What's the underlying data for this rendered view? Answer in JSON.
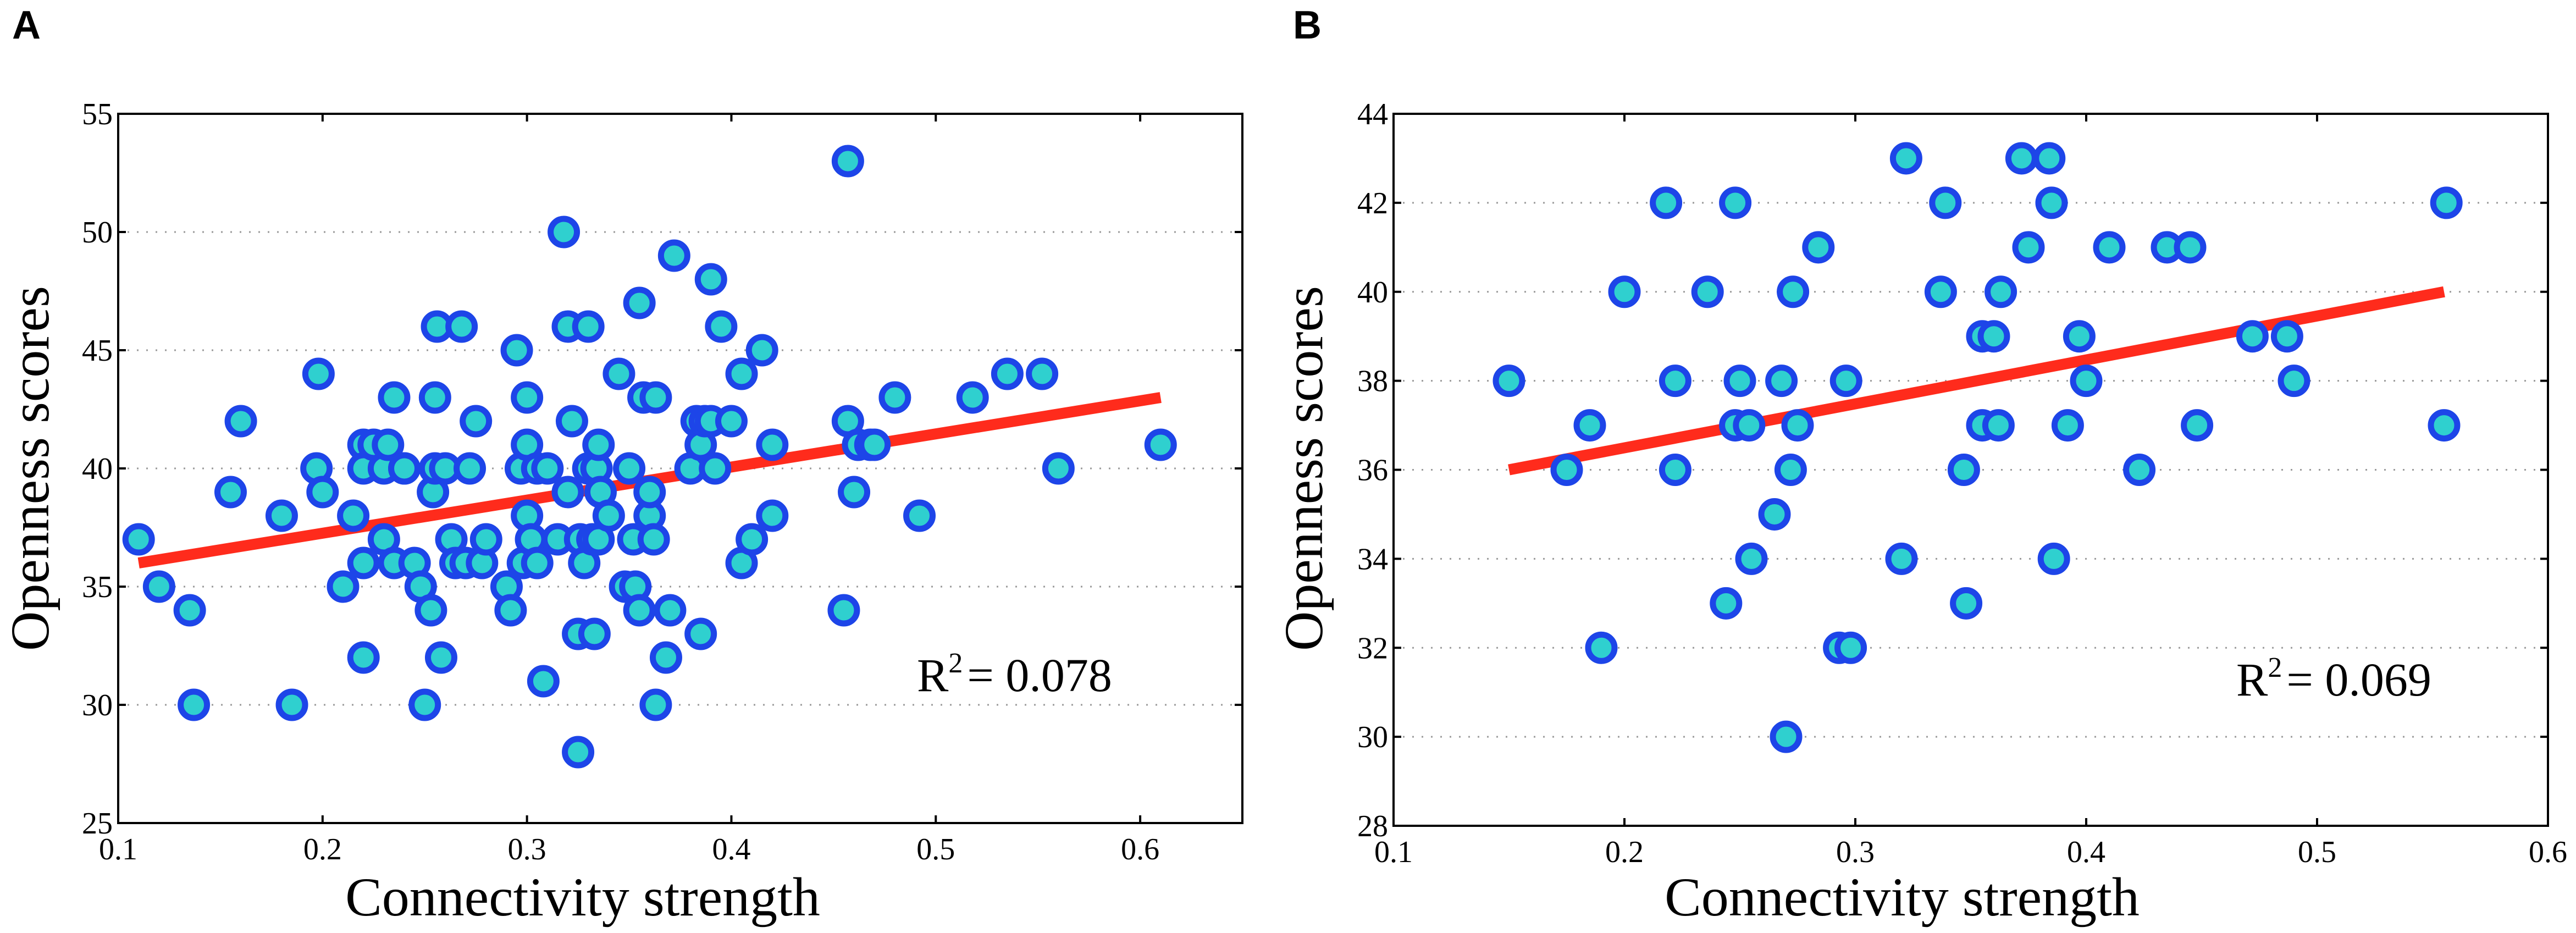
{
  "colors": {
    "marker_fill": "#2fd0cf",
    "marker_edge": "#1d45e8",
    "fit_line": "#ff2b1c"
  },
  "chart_data": [
    {
      "type": "scatter",
      "panel": "A",
      "xlabel": "Connectivity strength",
      "ylabel": "Openness scores",
      "xlim": [
        0.1,
        0.65
      ],
      "ylim": [
        25,
        55
      ],
      "xticks": [
        0.1,
        0.2,
        0.3,
        0.4,
        0.5,
        0.6
      ],
      "xtick_labels": [
        "0.1",
        "0.2",
        "0.3",
        "0.4",
        "0.5",
        "0.6"
      ],
      "yticks": [
        25,
        30,
        35,
        40,
        45,
        50,
        55
      ],
      "ytick_labels": [
        "25",
        "30",
        "35",
        "40",
        "45",
        "50",
        "55"
      ],
      "grid": true,
      "annotation": {
        "base": "R",
        "sup": "2",
        "text": "= 0.078"
      },
      "fit": {
        "x": [
          0.11,
          0.61
        ],
        "y": [
          36.0,
          43.0
        ]
      },
      "points": [
        [
          0.11,
          37
        ],
        [
          0.12,
          35
        ],
        [
          0.135,
          34
        ],
        [
          0.137,
          30
        ],
        [
          0.155,
          39
        ],
        [
          0.16,
          42
        ],
        [
          0.18,
          38
        ],
        [
          0.185,
          30
        ],
        [
          0.197,
          40
        ],
        [
          0.198,
          44
        ],
        [
          0.2,
          39
        ],
        [
          0.21,
          35
        ],
        [
          0.215,
          38
        ],
        [
          0.22,
          32
        ],
        [
          0.22,
          41
        ],
        [
          0.22,
          40
        ],
        [
          0.22,
          36
        ],
        [
          0.225,
          41
        ],
        [
          0.23,
          40
        ],
        [
          0.23,
          37
        ],
        [
          0.232,
          41
        ],
        [
          0.235,
          43
        ],
        [
          0.235,
          36
        ],
        [
          0.24,
          40
        ],
        [
          0.24,
          40
        ],
        [
          0.245,
          36
        ],
        [
          0.248,
          35
        ],
        [
          0.25,
          30
        ],
        [
          0.253,
          34
        ],
        [
          0.254,
          39
        ],
        [
          0.255,
          40
        ],
        [
          0.255,
          43
        ],
        [
          0.256,
          46
        ],
        [
          0.258,
          32
        ],
        [
          0.26,
          40
        ],
        [
          0.263,
          37
        ],
        [
          0.265,
          36
        ],
        [
          0.268,
          46
        ],
        [
          0.27,
          36
        ],
        [
          0.272,
          40
        ],
        [
          0.275,
          42
        ],
        [
          0.278,
          36
        ],
        [
          0.28,
          37
        ],
        [
          0.29,
          35
        ],
        [
          0.292,
          34
        ],
        [
          0.295,
          45
        ],
        [
          0.297,
          40
        ],
        [
          0.298,
          36
        ],
        [
          0.3,
          41
        ],
        [
          0.3,
          43
        ],
        [
          0.3,
          38
        ],
        [
          0.302,
          37
        ],
        [
          0.305,
          36
        ],
        [
          0.305,
          40
        ],
        [
          0.308,
          31
        ],
        [
          0.31,
          40
        ],
        [
          0.315,
          37
        ],
        [
          0.318,
          50
        ],
        [
          0.32,
          46
        ],
        [
          0.32,
          39
        ],
        [
          0.322,
          42
        ],
        [
          0.325,
          28
        ],
        [
          0.325,
          33
        ],
        [
          0.326,
          37
        ],
        [
          0.328,
          36
        ],
        [
          0.33,
          40
        ],
        [
          0.33,
          46
        ],
        [
          0.332,
          37
        ],
        [
          0.333,
          33
        ],
        [
          0.334,
          40
        ],
        [
          0.335,
          41
        ],
        [
          0.335,
          37
        ],
        [
          0.336,
          39
        ],
        [
          0.34,
          38
        ],
        [
          0.345,
          44
        ],
        [
          0.348,
          35
        ],
        [
          0.35,
          40
        ],
        [
          0.352,
          37
        ],
        [
          0.353,
          35
        ],
        [
          0.355,
          47
        ],
        [
          0.355,
          34
        ],
        [
          0.357,
          43
        ],
        [
          0.36,
          38
        ],
        [
          0.36,
          39
        ],
        [
          0.362,
          37
        ],
        [
          0.363,
          43
        ],
        [
          0.363,
          30
        ],
        [
          0.368,
          32
        ],
        [
          0.37,
          34
        ],
        [
          0.372,
          49
        ],
        [
          0.38,
          40
        ],
        [
          0.383,
          42
        ],
        [
          0.385,
          33
        ],
        [
          0.385,
          41
        ],
        [
          0.387,
          42
        ],
        [
          0.39,
          48
        ],
        [
          0.39,
          42
        ],
        [
          0.392,
          40
        ],
        [
          0.395,
          46
        ],
        [
          0.4,
          42
        ],
        [
          0.405,
          36
        ],
        [
          0.405,
          44
        ],
        [
          0.41,
          37
        ],
        [
          0.415,
          45
        ],
        [
          0.42,
          41
        ],
        [
          0.42,
          38
        ],
        [
          0.455,
          34
        ],
        [
          0.457,
          53
        ],
        [
          0.457,
          42
        ],
        [
          0.46,
          39
        ],
        [
          0.462,
          41
        ],
        [
          0.468,
          41
        ],
        [
          0.47,
          41
        ],
        [
          0.48,
          43
        ],
        [
          0.492,
          38
        ],
        [
          0.518,
          43
        ],
        [
          0.535,
          44
        ],
        [
          0.552,
          44
        ],
        [
          0.56,
          40
        ],
        [
          0.61,
          41
        ]
      ]
    },
    {
      "type": "scatter",
      "panel": "B",
      "xlabel": "Connectivity strength",
      "ylabel": "Openness scores",
      "xlim": [
        0.1,
        0.6
      ],
      "ylim": [
        28,
        44
      ],
      "xticks": [
        0.1,
        0.2,
        0.3,
        0.4,
        0.5,
        0.6
      ],
      "xtick_labels": [
        "0.1",
        "0.2",
        "0.3",
        "0.4",
        "0.5",
        "0.6"
      ],
      "yticks": [
        28,
        30,
        32,
        34,
        36,
        38,
        40,
        42,
        44
      ],
      "ytick_labels": [
        "28",
        "30",
        "32",
        "34",
        "36",
        "38",
        "40",
        "42",
        "44"
      ],
      "grid": true,
      "annotation": {
        "base": "R",
        "sup": "2",
        "text": "= 0.069"
      },
      "fit": {
        "x": [
          0.15,
          0.555
        ],
        "y": [
          36.0,
          40.0
        ]
      },
      "points": [
        [
          0.15,
          38
        ],
        [
          0.175,
          36
        ],
        [
          0.185,
          37
        ],
        [
          0.19,
          32
        ],
        [
          0.2,
          40
        ],
        [
          0.218,
          42
        ],
        [
          0.222,
          38
        ],
        [
          0.222,
          36
        ],
        [
          0.236,
          40
        ],
        [
          0.244,
          33
        ],
        [
          0.248,
          42
        ],
        [
          0.248,
          37
        ],
        [
          0.25,
          38
        ],
        [
          0.254,
          37
        ],
        [
          0.255,
          34
        ],
        [
          0.265,
          35
        ],
        [
          0.268,
          38
        ],
        [
          0.27,
          30
        ],
        [
          0.272,
          36
        ],
        [
          0.273,
          40
        ],
        [
          0.275,
          37
        ],
        [
          0.284,
          41
        ],
        [
          0.293,
          32
        ],
        [
          0.296,
          38
        ],
        [
          0.298,
          32
        ],
        [
          0.32,
          34
        ],
        [
          0.322,
          43
        ],
        [
          0.337,
          40
        ],
        [
          0.339,
          42
        ],
        [
          0.347,
          36
        ],
        [
          0.348,
          33
        ],
        [
          0.355,
          39
        ],
        [
          0.355,
          37
        ],
        [
          0.36,
          39
        ],
        [
          0.362,
          37
        ],
        [
          0.363,
          40
        ],
        [
          0.372,
          43
        ],
        [
          0.375,
          41
        ],
        [
          0.384,
          43
        ],
        [
          0.385,
          42
        ],
        [
          0.386,
          34
        ],
        [
          0.392,
          37
        ],
        [
          0.397,
          39
        ],
        [
          0.4,
          38
        ],
        [
          0.41,
          41
        ],
        [
          0.423,
          36
        ],
        [
          0.435,
          41
        ],
        [
          0.445,
          41
        ],
        [
          0.448,
          37
        ],
        [
          0.472,
          39
        ],
        [
          0.487,
          39
        ],
        [
          0.49,
          38
        ],
        [
          0.555,
          37
        ],
        [
          0.556,
          42
        ]
      ]
    }
  ]
}
